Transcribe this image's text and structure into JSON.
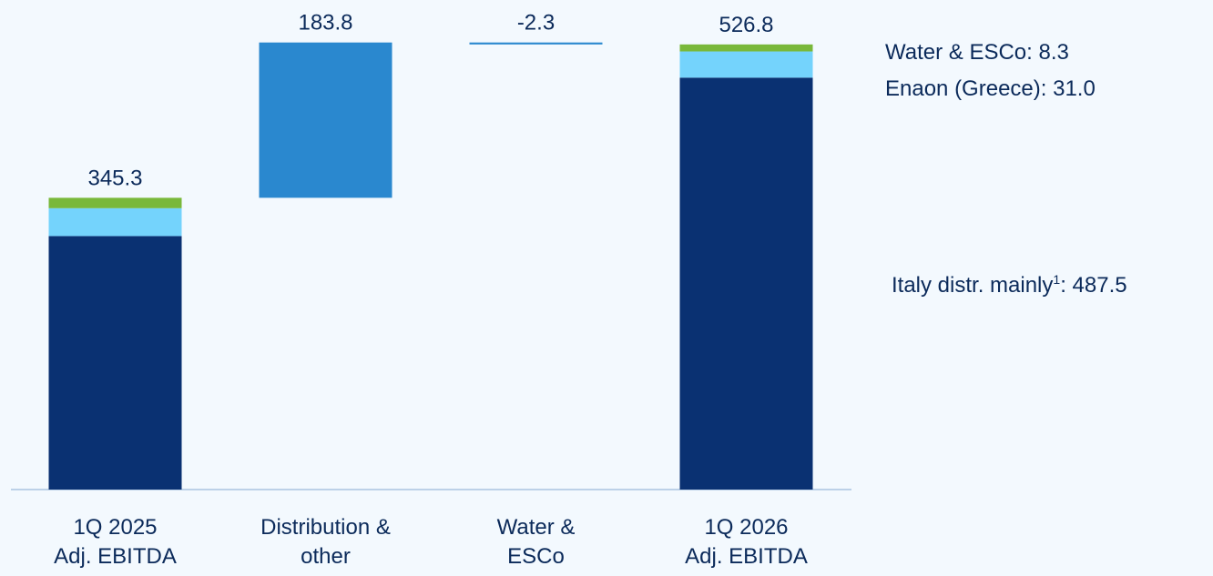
{
  "chart_data": {
    "type": "waterfall",
    "categories": [
      [
        "1Q 2025",
        "Adj. EBITDA"
      ],
      [
        "Distribution &",
        "other"
      ],
      [
        "Water &",
        "ESCo"
      ],
      [
        "1Q 2026",
        "Adj. EBITDA"
      ]
    ],
    "values": [
      345.3,
      183.8,
      -2.3,
      526.8
    ],
    "totals": [
      true,
      false,
      false,
      true
    ],
    "segments": [
      [
        300,
        33,
        12.3
      ],
      null,
      null,
      [
        487.5,
        31.0,
        8.3
      ]
    ],
    "segment_colors": [
      "#0a3172",
      "#74d3fc",
      "#79b83a"
    ],
    "delta_color": "#2a88cf",
    "ylim": [
      0,
      560
    ],
    "annotations": [
      {
        "text": "Water & ESCo: 8.3"
      },
      {
        "text": "Enaon (Greece): 31.0"
      },
      {
        "text": "Italy distr. mainly",
        "sup": "1",
        "suffix": ": 487.5"
      }
    ]
  }
}
